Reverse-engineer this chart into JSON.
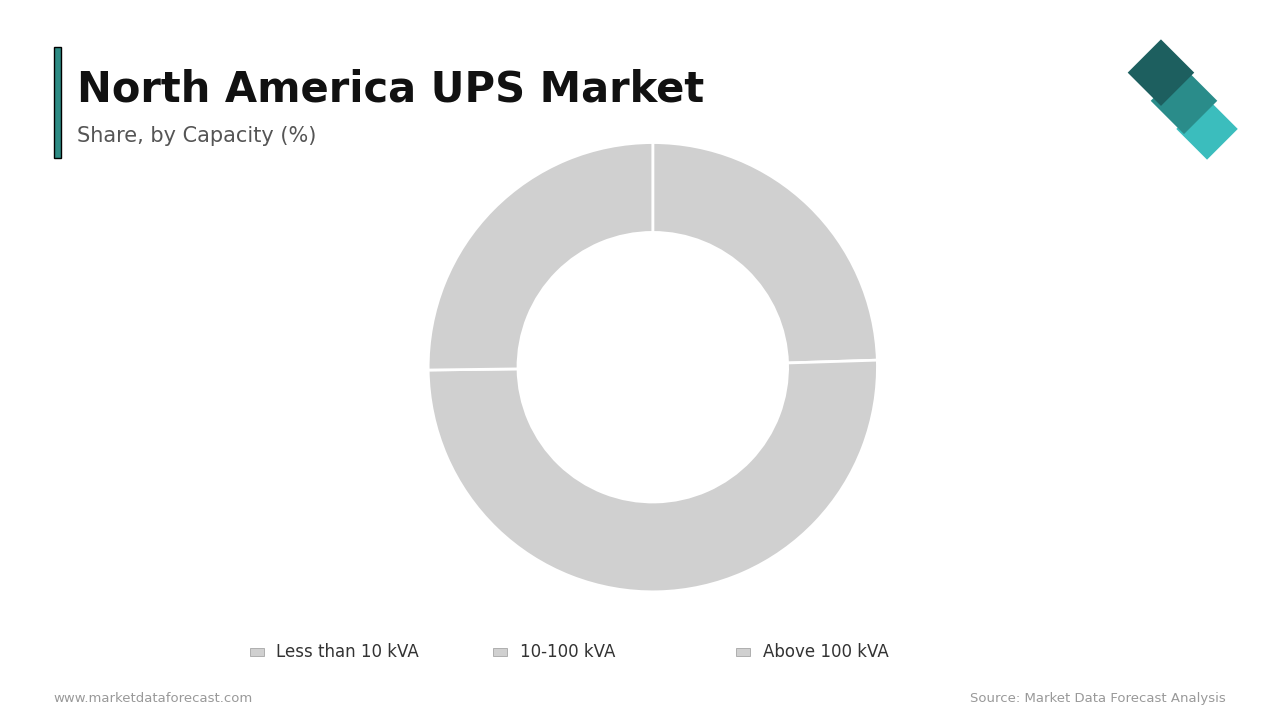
{
  "title": "North America UPS Market",
  "subtitle": "Share, by Capacity (%)",
  "segments": [
    {
      "label": "Less than 10 kVA",
      "value": 24.5
    },
    {
      "label": "10-100 kVA",
      "value": 50.3
    },
    {
      "label": "Above 100 kVA",
      "value": 25.2
    }
  ],
  "colors": [
    "#d0d0d0",
    "#d0d0d0",
    "#d0d0d0"
  ],
  "background_color": "#ffffff",
  "title_fontsize": 30,
  "subtitle_fontsize": 15,
  "legend_fontsize": 12,
  "footer_left": "www.marketdataforecast.com",
  "footer_right": "Source: Market Data Forecast Analysis",
  "accent_color": "#2e8b84",
  "wedge_edge_color": "#ffffff",
  "wedge_edge_width": 2.0,
  "start_angle": 90,
  "logo_colors": [
    "#1d5f5f",
    "#2a8c8a",
    "#3bbdbd"
  ]
}
